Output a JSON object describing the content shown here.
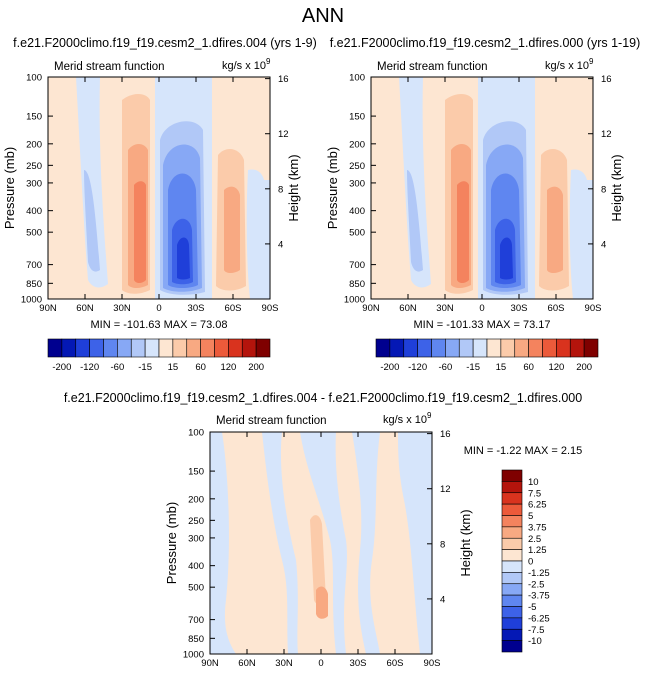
{
  "figure": {
    "title": "ANN"
  },
  "colors": {
    "neg": [
      "#00008f",
      "#0418b5",
      "#1f3fd9",
      "#3d62e8",
      "#5f86f0",
      "#87a8f5",
      "#b1c8f7",
      "#d6e5fb"
    ],
    "pos": [
      "#fde6d2",
      "#fbcbaa",
      "#f8a982",
      "#f4835e",
      "#ec5a3a",
      "#d9331e",
      "#b4140c",
      "#7f0000"
    ]
  },
  "chart_data": [
    {
      "id": "p1",
      "type": "contour",
      "title": "f.e21.F2000climo.f19_f19.cesm2_1.dfires.004 (yrs 1-9)",
      "field_label": "Merid stream function",
      "units": "kg/s x 10",
      "units_exp": "9",
      "ylabel": "Pressure (mb)",
      "ylabel_right": "Height (km)",
      "x_ticks": [
        "90N",
        "60N",
        "30N",
        "0",
        "30S",
        "60S",
        "90S"
      ],
      "y_ticks": [
        "100",
        "150",
        "200",
        "250",
        "300",
        "400",
        "500",
        "700",
        "850",
        "1000"
      ],
      "y_right_ticks": [
        "16",
        "12",
        "8",
        "4"
      ],
      "stats": "MIN = -101.63   MAX =  73.08",
      "min": -101.63,
      "max": 73.08
    },
    {
      "id": "p2",
      "type": "contour",
      "title": "f.e21.F2000climo.f19_f19.cesm2_1.dfires.000 (yrs 1-19)",
      "field_label": "Merid stream function",
      "units": "kg/s x 10",
      "units_exp": "9",
      "ylabel": "Pressure (mb)",
      "ylabel_right": "Height (km)",
      "x_ticks": [
        "90N",
        "60N",
        "30N",
        "0",
        "30S",
        "60S",
        "90S"
      ],
      "y_ticks": [
        "100",
        "150",
        "200",
        "250",
        "300",
        "400",
        "500",
        "700",
        "850",
        "1000"
      ],
      "y_right_ticks": [
        "16",
        "12",
        "8",
        "4"
      ],
      "stats": "MIN = -101.33   MAX =  73.17",
      "min": -101.33,
      "max": 73.17
    },
    {
      "id": "p3",
      "type": "contour",
      "title": "f.e21.F2000climo.f19_f19.cesm2_1.dfires.004 - f.e21.F2000climo.f19_f19.cesm2_1.dfires.000",
      "field_label": "Merid stream function",
      "units": "kg/s x 10",
      "units_exp": "9",
      "ylabel": "Pressure (mb)",
      "ylabel_right": "Height (km)",
      "x_ticks": [
        "90N",
        "60N",
        "30N",
        "0",
        "30S",
        "60S",
        "90S"
      ],
      "y_ticks": [
        "100",
        "150",
        "200",
        "250",
        "300",
        "400",
        "500",
        "700",
        "850",
        "1000"
      ],
      "y_right_ticks": [
        "16",
        "12",
        "8",
        "4"
      ],
      "stats": "MIN =  -1.22   MAX =   2.15",
      "min": -1.22,
      "max": 2.15
    }
  ],
  "colorbars": {
    "top": {
      "labels": [
        "-200",
        "-120",
        "-60",
        "-15",
        "15",
        "60",
        "120",
        "200"
      ]
    },
    "diff": {
      "labels": [
        "10",
        "7.5",
        "6.25",
        "5",
        "3.75",
        "2.5",
        "1.25",
        "0",
        "-1.25",
        "-2.5",
        "-3.75",
        "-5",
        "-6.25",
        "-7.5",
        "-10"
      ]
    }
  }
}
